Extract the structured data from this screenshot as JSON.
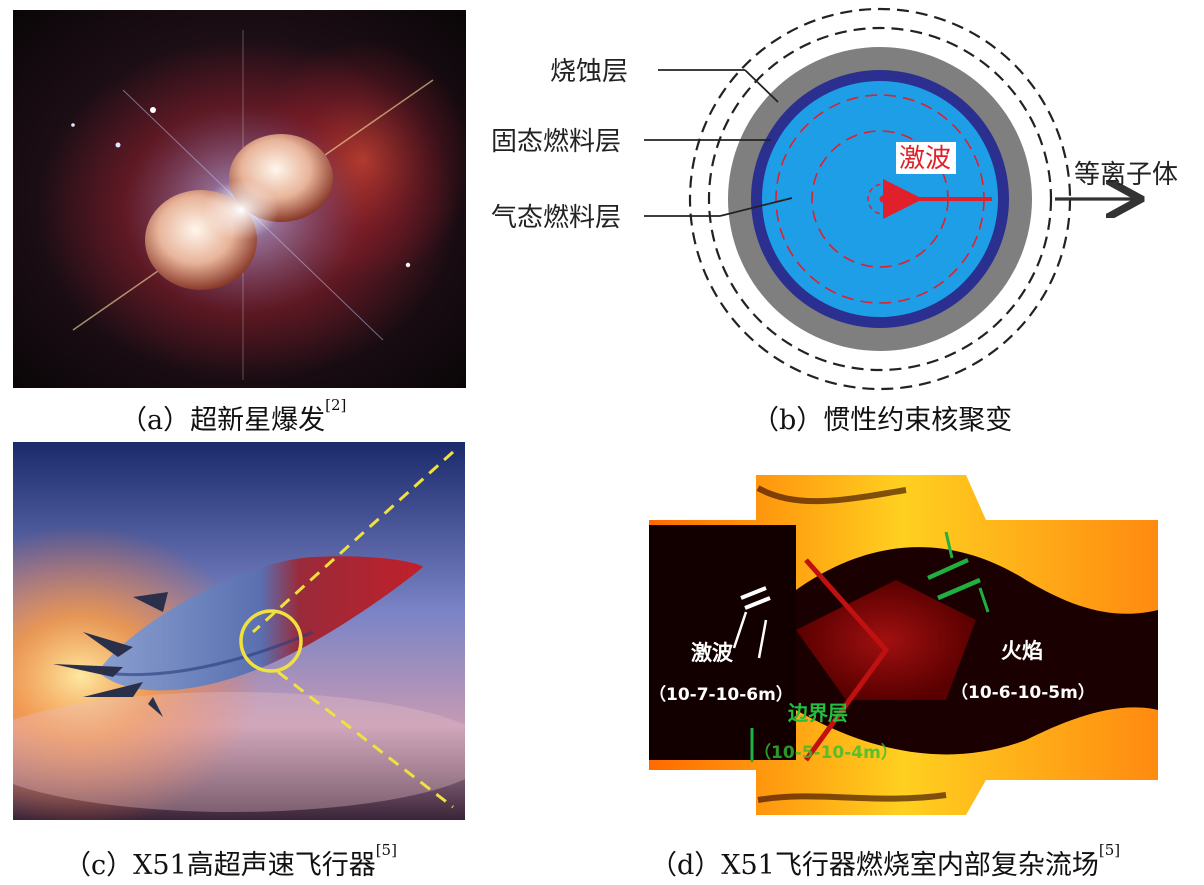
{
  "panel_a": {
    "caption_prefix": "（a）超新星爆发",
    "caption_ref": "[2]"
  },
  "panel_b": {
    "labels": {
      "ablation_layer": "烧蚀层",
      "solid_fuel_layer": "固态燃料层",
      "gas_fuel_layer": "气态燃料层",
      "shock_wave": "激波",
      "plasma": "等离子体"
    },
    "caption": "（b）惯性约束核聚变",
    "colors": {
      "ablation": "#7f7f7f",
      "solid_fuel": "#2b2f8f",
      "gas_fuel": "#1e9ee6",
      "shock": "#e0202a"
    }
  },
  "panel_c": {
    "caption_prefix": "（c）X51高超声速飞行器",
    "caption_ref": "[5]"
  },
  "panel_d": {
    "labels": {
      "shock_wave": "激波",
      "shock_scale": "（10-7-10-6m）",
      "flame": "火焰",
      "flame_scale": "（10-6-10-5m）",
      "boundary_layer": "边界层",
      "boundary_scale": "（10-5-10-4m）"
    },
    "caption_prefix": "（d）X51飞行器燃烧室内部复杂流场",
    "caption_ref": "[5]"
  }
}
